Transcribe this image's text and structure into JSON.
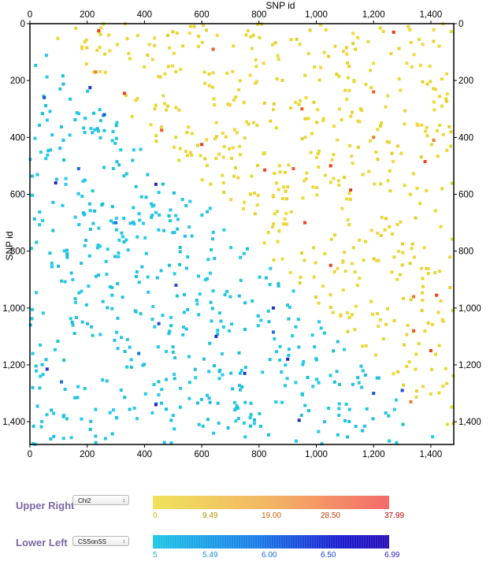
{
  "chart_data": {
    "type": "scatter",
    "subtype": "triangular-heatmap-matrix",
    "x_label": "SNP id",
    "y_label": "SNP id",
    "xlim": [
      0,
      1480
    ],
    "ylim": [
      0,
      1480
    ],
    "y_inverted": true,
    "x_ticks": [
      "0",
      "200",
      "400",
      "600",
      "800",
      "1,000",
      "1,200",
      "1,400"
    ],
    "y_ticks": [
      "0",
      "200",
      "400",
      "600",
      "800",
      "1,000",
      "1,200",
      "1,400"
    ],
    "x_tick_values": [
      0,
      200,
      400,
      600,
      800,
      1000,
      1200,
      1400
    ],
    "y_tick_values": [
      0,
      200,
      400,
      600,
      800,
      1000,
      1200,
      1400
    ],
    "grid": false,
    "seed": 7,
    "upper_right": {
      "label": "Upper Right",
      "statistic": "Chi2",
      "range": [
        0,
        37.99
      ],
      "ticks": [
        "0",
        "9.49",
        "19.00",
        "28.50",
        "37.99"
      ],
      "colors": [
        "#efe25c",
        "#f3b564",
        "#f56a6a"
      ],
      "tick_colors": [
        "#c8b400",
        "#b49000",
        "#c86400",
        "#c83c00",
        "#c80000"
      ],
      "approx_point_count": 520,
      "typical_value_range": [
        0,
        9
      ],
      "highlights": [
        {
          "x": 240,
          "y": 25
        },
        {
          "x": 640,
          "y": 90
        },
        {
          "x": 1270,
          "y": 30
        },
        {
          "x": 230,
          "y": 170
        },
        {
          "x": 330,
          "y": 245
        },
        {
          "x": 460,
          "y": 375
        },
        {
          "x": 600,
          "y": 425
        },
        {
          "x": 1200,
          "y": 400
        },
        {
          "x": 820,
          "y": 515
        },
        {
          "x": 920,
          "y": 510
        },
        {
          "x": 1050,
          "y": 500
        },
        {
          "x": 1410,
          "y": 410
        },
        {
          "x": 1380,
          "y": 485
        },
        {
          "x": 950,
          "y": 300
        },
        {
          "x": 1050,
          "y": 850
        },
        {
          "x": 1340,
          "y": 960
        },
        {
          "x": 1420,
          "y": 955
        },
        {
          "x": 1340,
          "y": 1080
        },
        {
          "x": 1400,
          "y": 1150
        },
        {
          "x": 1330,
          "y": 1330
        },
        {
          "x": 960,
          "y": 700
        },
        {
          "x": 1200,
          "y": 240
        },
        {
          "x": 1120,
          "y": 585
        }
      ]
    },
    "lower_left": {
      "label": "Lower Left",
      "statistic": "CSSonSS",
      "range": [
        5,
        6.99
      ],
      "ticks": [
        "5",
        "5.49",
        "6.00",
        "6.50",
        "6.99"
      ],
      "colors": [
        "#1fc6e6",
        "#1b7be8",
        "#1c1bd0"
      ],
      "tick_colors": [
        "#1aa8dc",
        "#1a8ce0",
        "#1a6ee0",
        "#1a40d8",
        "#3020c8"
      ],
      "approx_point_count": 520,
      "typical_value_range": [
        5,
        5.3
      ],
      "highlights": [
        {
          "x": 50,
          "y": 260
        },
        {
          "x": 210,
          "y": 225
        },
        {
          "x": 300,
          "y": 700
        },
        {
          "x": 440,
          "y": 565
        },
        {
          "x": 450,
          "y": 1055
        },
        {
          "x": 850,
          "y": 1000
        },
        {
          "x": 850,
          "y": 1085
        },
        {
          "x": 940,
          "y": 1395
        },
        {
          "x": 1300,
          "y": 1290
        },
        {
          "x": 60,
          "y": 1215
        },
        {
          "x": 110,
          "y": 1260
        },
        {
          "x": 440,
          "y": 1340
        },
        {
          "x": 510,
          "y": 920
        },
        {
          "x": 650,
          "y": 1100
        },
        {
          "x": 170,
          "y": 510
        },
        {
          "x": 900,
          "y": 1180
        },
        {
          "x": 1200,
          "y": 1300
        },
        {
          "x": 750,
          "y": 1230
        },
        {
          "x": 380,
          "y": 1160
        },
        {
          "x": 90,
          "y": 560
        },
        {
          "x": 260,
          "y": 320
        }
      ]
    }
  }
}
